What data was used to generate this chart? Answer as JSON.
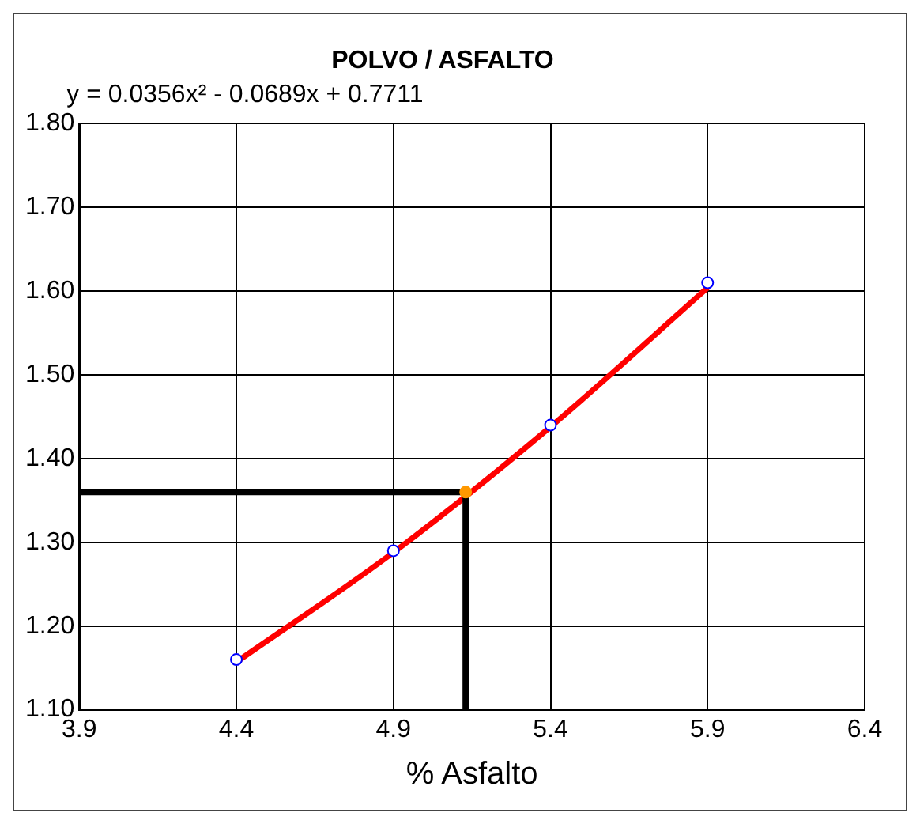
{
  "chart_data": {
    "type": "scatter",
    "title": "POLVO / ASFALTO",
    "xlabel": "% Asfalto",
    "xlim": [
      3.9,
      6.4
    ],
    "xticks": [
      3.9,
      4.4,
      4.9,
      5.4,
      5.9,
      6.4
    ],
    "ylim": [
      1.1,
      1.8
    ],
    "yticks": [
      {
        "value": 1.1,
        "label": "1.10"
      },
      {
        "value": 1.2,
        "label": "1.20"
      },
      {
        "value": 1.3,
        "label": "1.30"
      },
      {
        "value": 1.4,
        "label": "1.40"
      },
      {
        "value": 1.5,
        "label": "1.50"
      },
      {
        "value": 1.6,
        "label": "1.60"
      },
      {
        "value": 1.7,
        "label": "1.70"
      },
      {
        "value": 1.8,
        "label": "1.80"
      }
    ],
    "grid": true,
    "legend": false,
    "annotations": [
      "y = 0.0356x² - 0.0689x + 0.7711"
    ],
    "series": [
      {
        "type": "line",
        "color": "#000000",
        "x": [
          3.9,
          5.13,
          5.13
        ],
        "values": [
          1.36,
          1.36,
          1.1
        ],
        "marker": "none"
      },
      {
        "type": "line",
        "color": "#ff0000",
        "x": [
          4.4,
          4.9,
          5.4,
          5.9
        ],
        "values": [
          1.157,
          1.288,
          1.438,
          1.604
        ],
        "marker": "none"
      },
      {
        "type": "scatter",
        "color": "#0000ff",
        "x": [
          4.4,
          4.9,
          5.4,
          5.9
        ],
        "values": [
          1.16,
          1.29,
          1.44,
          1.61
        ],
        "marker": "circle"
      },
      {
        "type": "scatter",
        "color": "#ff9900",
        "x": [
          5.13
        ],
        "values": [
          1.36
        ],
        "marker": "circle"
      }
    ]
  }
}
